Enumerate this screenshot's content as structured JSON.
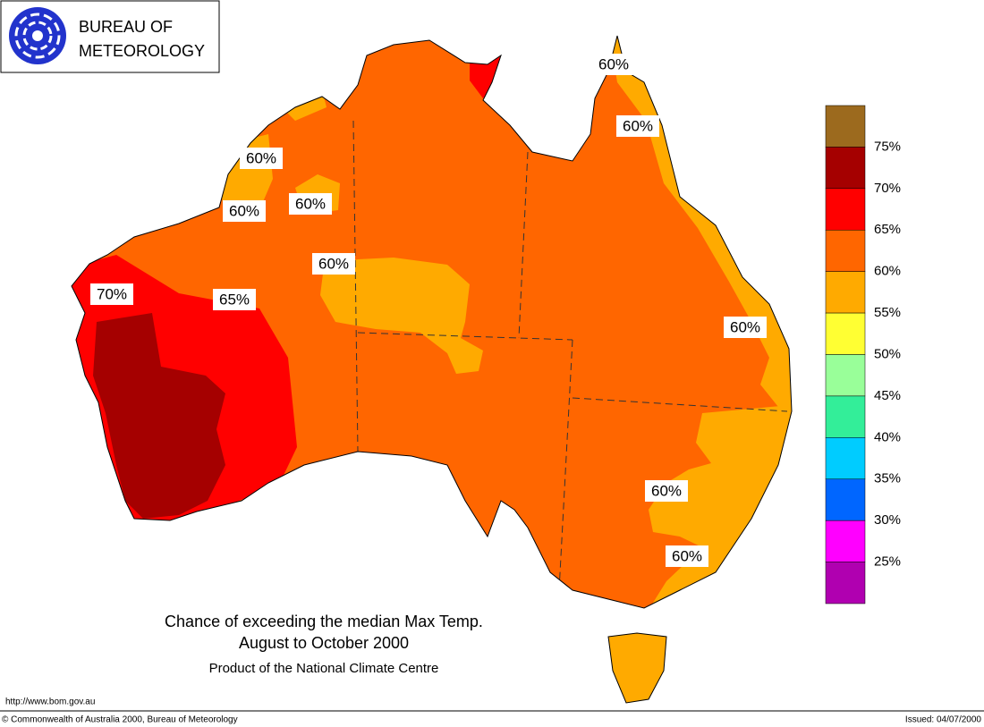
{
  "header": {
    "line1": "BUREAU OF",
    "line2": "METEOROLOGY"
  },
  "legend": {
    "labels": [
      "75%",
      "70%",
      "65%",
      "60%",
      "55%",
      "50%",
      "45%",
      "40%",
      "35%",
      "30%",
      "25%"
    ],
    "colors": [
      "#9c6a1e",
      "#a50000",
      "#ff0000",
      "#ff6600",
      "#ffaa00",
      "#ffff33",
      "#99ff99",
      "#33ee99",
      "#00ccff",
      "#0066ff",
      "#ff00ff",
      "#b000b0"
    ]
  },
  "map_labels": [
    "60%",
    "60%",
    "60%",
    "60%",
    "60%",
    "60%",
    "60%",
    "60%",
    "60%",
    "70%",
    "65%"
  ],
  "caption": {
    "title": "Chance of exceeding the median Max Temp.",
    "subtitle": "August to October 2000",
    "product": "Product of the National Climate Centre"
  },
  "footer": {
    "url": "http://www.bom.gov.au",
    "copyright": "© Commonwealth of Australia 2000, Bureau of Meteorology",
    "issued": "Issued: 04/07/2000"
  }
}
